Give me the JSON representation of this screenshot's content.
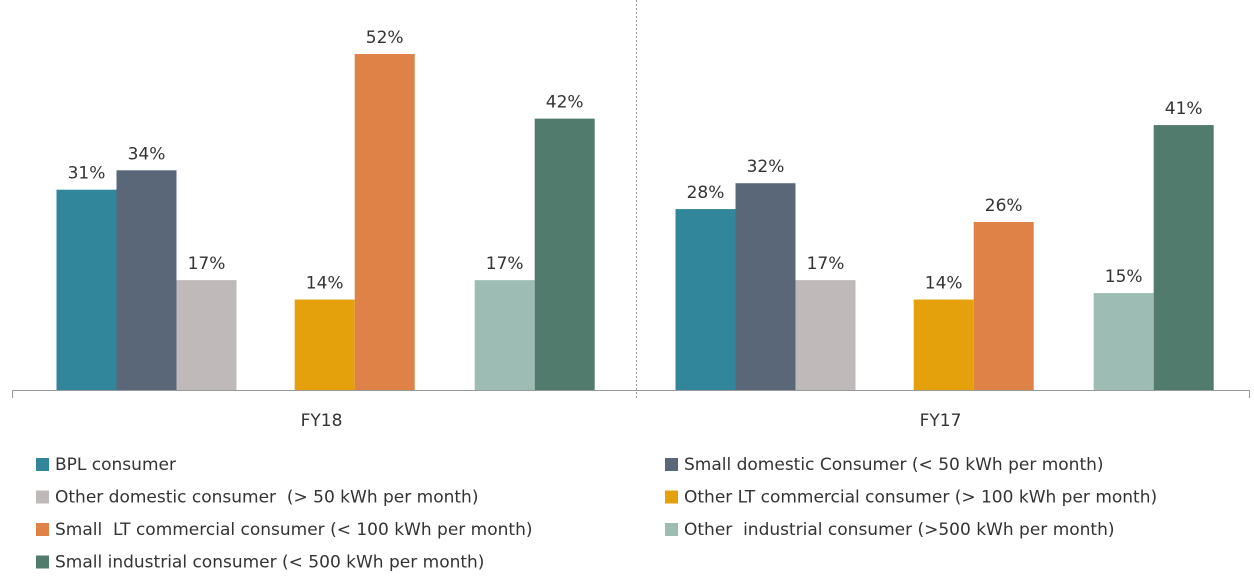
{
  "chart_data": {
    "type": "bar",
    "categories": [
      "FY18",
      "FY17"
    ],
    "series": [
      {
        "name": "BPL consumer",
        "color": "#31869b",
        "values": [
          31,
          28
        ],
        "value_labels": [
          "31%",
          "28%"
        ]
      },
      {
        "name": "Small domestic Consumer (< 50 kWh per month)",
        "color": "#596779",
        "values": [
          34,
          32
        ],
        "value_labels": [
          "34%",
          "32%"
        ]
      },
      {
        "name": "Other domestic consumer  (> 50 kWh per month)",
        "color": "#bfb9b9",
        "values": [
          17,
          17
        ],
        "value_labels": [
          "17%",
          "17%"
        ]
      },
      {
        "name": "Other LT commercial consumer (> 100 kWh per month)",
        "color": "#e4a10c",
        "values": [
          14,
          14
        ],
        "value_labels": [
          "14%",
          "14%"
        ]
      },
      {
        "name": "Small  LT commercial consumer (< 100 kWh per month)",
        "color": "#de8247",
        "values": [
          52,
          26
        ],
        "value_labels": [
          "52%",
          "26%"
        ]
      },
      {
        "name": "Other  industrial consumer (>500 kWh per month)",
        "color": "#9dbcb4",
        "values": [
          17,
          15
        ],
        "value_labels": [
          "17%",
          "15%"
        ]
      },
      {
        "name": "Small industrial consumer (< 500 kWh per month)",
        "color": "#517c6d",
        "values": [
          42,
          41
        ],
        "value_labels": [
          "42%",
          "41%"
        ]
      }
    ],
    "legend": "bottom"
  }
}
